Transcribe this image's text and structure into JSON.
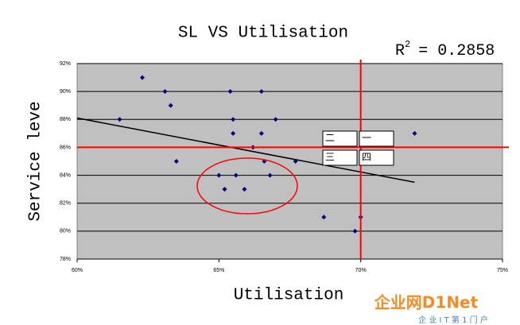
{
  "chart_data": {
    "type": "scatter",
    "title": "SL VS Utilisation",
    "x_label": "Utilisation",
    "y_label": "Service leve",
    "annotation": {
      "base": "R",
      "sup": "2",
      "text": "= 0.2858"
    },
    "color": "#000080",
    "plot_background": "#c0c0c0",
    "grid": true,
    "x": [
      62.3,
      63.1,
      63.3,
      61.5,
      63.5,
      65.4,
      66.5,
      65.5,
      67.0,
      65.5,
      66.5,
      66.2,
      66.6,
      67.7,
      65.0,
      65.6,
      66.8,
      65.2,
      65.9,
      68.7,
      70.0,
      69.8,
      71.9
    ],
    "values": [
      91,
      90,
      89,
      88,
      85,
      90,
      90,
      88,
      88,
      87,
      87,
      86,
      85,
      85,
      84,
      84,
      84,
      83,
      83,
      81,
      81,
      80,
      87
    ],
    "trendline": {
      "color": "#000000",
      "x": [
        60,
        71.9
      ],
      "y": [
        88.1,
        83.5
      ]
    },
    "reference_lines": {
      "color": "#ff0000",
      "x": 70,
      "y": 86
    },
    "quadrant_labels": [
      "二",
      "一",
      "三",
      "四"
    ],
    "xlim": [
      60,
      75
    ],
    "xticks": [
      {
        "value": 60,
        "label": "60%"
      },
      {
        "value": 65,
        "label": "65%"
      },
      {
        "value": 70,
        "label": "70%"
      },
      {
        "value": 75,
        "label": "75%"
      }
    ],
    "ylim": [
      78,
      92
    ],
    "yticks": [
      {
        "value": 78,
        "label": "78%"
      },
      {
        "value": 80,
        "label": "80%"
      },
      {
        "value": 82,
        "label": "82%"
      },
      {
        "value": 84,
        "label": "84%"
      },
      {
        "value": 86,
        "label": "86%"
      },
      {
        "value": 88,
        "label": "88%"
      },
      {
        "value": 90,
        "label": "90%"
      },
      {
        "value": 92,
        "label": "92%"
      }
    ]
  },
  "watermark": {
    "logo": "企业网D1Net",
    "tagline": "企 业 I T 第 1 门 户"
  }
}
